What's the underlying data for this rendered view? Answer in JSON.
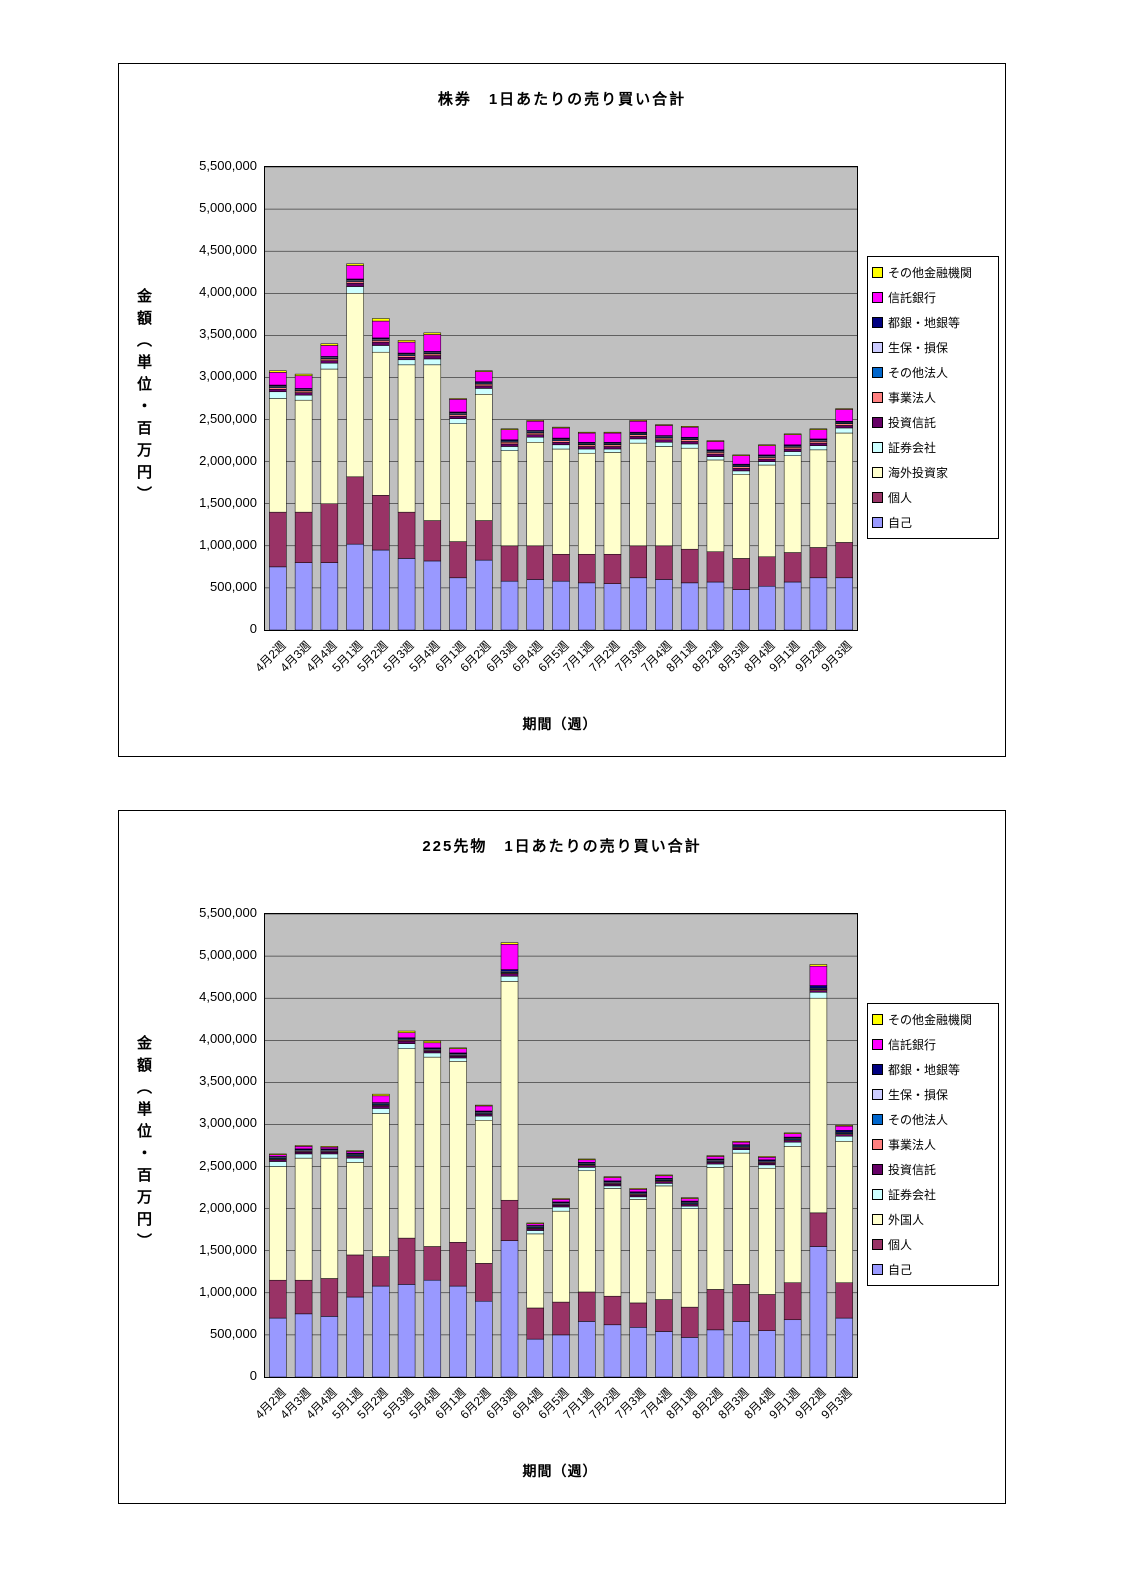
{
  "chart_data": [
    {
      "type": "bar",
      "stacked": true,
      "title": "株券　1日あたりの売り買い合計",
      "xlabel": "期間（週）",
      "ylabel": "金額（単位・百万円）",
      "ylim": [
        0,
        5500000
      ],
      "ytick_step": 500000,
      "grid": true,
      "legend_position": "right",
      "plot_bg": "#c0c0c0",
      "categories": [
        "4月2週",
        "4月3週",
        "4月4週",
        "5月1週",
        "5月2週",
        "5月3週",
        "5月4週",
        "6月1週",
        "6月2週",
        "6月3週",
        "6月4週",
        "6月5週",
        "7月1週",
        "7月2週",
        "7月3週",
        "7月4週",
        "8月1週",
        "8月2週",
        "8月3週",
        "8月4週",
        "9月1週",
        "9月2週",
        "9月3週"
      ],
      "series": [
        {
          "name": "自己",
          "color": "#9999FF",
          "values": [
            750000,
            800000,
            800000,
            1020000,
            950000,
            850000,
            820000,
            620000,
            830000,
            580000,
            600000,
            580000,
            560000,
            550000,
            620000,
            600000,
            560000,
            570000,
            480000,
            520000,
            570000,
            620000,
            620000
          ]
        },
        {
          "name": "個人",
          "color": "#993366",
          "values": [
            650000,
            600000,
            700000,
            800000,
            650000,
            550000,
            480000,
            430000,
            470000,
            420000,
            400000,
            320000,
            340000,
            350000,
            380000,
            400000,
            400000,
            360000,
            370000,
            350000,
            350000,
            360000,
            420000
          ]
        },
        {
          "name": "海外投資家",
          "color": "#FFFFCC",
          "values": [
            1350000,
            1330000,
            1600000,
            2180000,
            1700000,
            1750000,
            1850000,
            1400000,
            1500000,
            1130000,
            1230000,
            1250000,
            1200000,
            1210000,
            1220000,
            1180000,
            1200000,
            1090000,
            1000000,
            1090000,
            1150000,
            1160000,
            1300000
          ]
        },
        {
          "name": "証券会社",
          "color": "#CCFFFF",
          "values": [
            80000,
            60000,
            70000,
            80000,
            80000,
            60000,
            70000,
            60000,
            70000,
            50000,
            60000,
            50000,
            50000,
            40000,
            50000,
            50000,
            50000,
            40000,
            40000,
            40000,
            50000,
            50000,
            60000
          ]
        },
        {
          "name": "投資信託",
          "color": "#660066",
          "values": [
            30000,
            30000,
            30000,
            40000,
            40000,
            30000,
            40000,
            30000,
            30000,
            30000,
            30000,
            30000,
            30000,
            30000,
            30000,
            30000,
            30000,
            30000,
            30000,
            30000,
            30000,
            30000,
            30000
          ]
        },
        {
          "name": "事業法人",
          "color": "#FF8080",
          "values": [
            20000,
            20000,
            20000,
            20000,
            20000,
            20000,
            20000,
            20000,
            20000,
            20000,
            20000,
            20000,
            20000,
            20000,
            20000,
            20000,
            20000,
            20000,
            20000,
            20000,
            20000,
            20000,
            20000
          ]
        },
        {
          "name": "その他法人",
          "color": "#0066CC",
          "values": [
            10000,
            10000,
            10000,
            10000,
            10000,
            10000,
            10000,
            10000,
            10000,
            10000,
            10000,
            10000,
            10000,
            10000,
            10000,
            10000,
            10000,
            10000,
            10000,
            10000,
            10000,
            10000,
            10000
          ]
        },
        {
          "name": "生保・損保",
          "color": "#CCCCFF",
          "values": [
            10000,
            10000,
            10000,
            10000,
            10000,
            10000,
            10000,
            10000,
            10000,
            10000,
            10000,
            10000,
            10000,
            10000,
            10000,
            10000,
            10000,
            10000,
            10000,
            10000,
            10000,
            10000,
            10000
          ]
        },
        {
          "name": "都銀・地銀等",
          "color": "#000080",
          "values": [
            10000,
            10000,
            10000,
            10000,
            10000,
            10000,
            10000,
            10000,
            10000,
            10000,
            10000,
            10000,
            10000,
            10000,
            10000,
            10000,
            10000,
            10000,
            10000,
            10000,
            10000,
            10000,
            10000
          ]
        },
        {
          "name": "信託銀行",
          "color": "#FF00FF",
          "values": [
            150000,
            150000,
            130000,
            160000,
            200000,
            130000,
            200000,
            150000,
            120000,
            120000,
            110000,
            120000,
            110000,
            110000,
            130000,
            120000,
            120000,
            100000,
            100000,
            110000,
            120000,
            110000,
            140000
          ]
        },
        {
          "name": "その他金融機関",
          "color": "#FFFF00",
          "values": [
            20000,
            20000,
            20000,
            20000,
            30000,
            20000,
            20000,
            10000,
            10000,
            10000,
            10000,
            10000,
            10000,
            10000,
            10000,
            10000,
            10000,
            10000,
            10000,
            10000,
            10000,
            10000,
            10000
          ]
        }
      ]
    },
    {
      "type": "bar",
      "stacked": true,
      "title": "225先物　1日あたりの売り買い合計",
      "xlabel": "期間（週）",
      "ylabel": "金額（単位・百万円）",
      "ylim": [
        0,
        5500000
      ],
      "ytick_step": 500000,
      "grid": true,
      "legend_position": "right",
      "plot_bg": "#c0c0c0",
      "categories": [
        "4月2週",
        "4月3週",
        "4月4週",
        "5月1週",
        "5月2週",
        "5月3週",
        "5月4週",
        "6月1週",
        "6月2週",
        "6月3週",
        "6月4週",
        "6月5週",
        "7月1週",
        "7月2週",
        "7月3週",
        "7月4週",
        "8月1週",
        "8月2週",
        "8月3週",
        "8月4週",
        "9月1週",
        "9月2週",
        "9月3週"
      ],
      "series": [
        {
          "name": "自己",
          "color": "#9999FF",
          "values": [
            700000,
            750000,
            720000,
            950000,
            1080000,
            1100000,
            1150000,
            1080000,
            900000,
            1620000,
            450000,
            500000,
            660000,
            620000,
            590000,
            540000,
            470000,
            560000,
            660000,
            550000,
            680000,
            1550000,
            700000
          ]
        },
        {
          "name": "個人",
          "color": "#993366",
          "values": [
            450000,
            400000,
            450000,
            500000,
            350000,
            550000,
            400000,
            520000,
            450000,
            480000,
            370000,
            390000,
            350000,
            340000,
            290000,
            380000,
            360000,
            480000,
            440000,
            430000,
            440000,
            400000,
            420000
          ]
        },
        {
          "name": "外国人",
          "color": "#FFFFCC",
          "values": [
            1350000,
            1450000,
            1430000,
            1100000,
            1700000,
            2250000,
            2250000,
            2150000,
            1700000,
            2600000,
            880000,
            1080000,
            1440000,
            1280000,
            1230000,
            1350000,
            1170000,
            1450000,
            1560000,
            1500000,
            1620000,
            2550000,
            1680000
          ]
        },
        {
          "name": "証券会社",
          "color": "#CCFFFF",
          "values": [
            60000,
            50000,
            50000,
            50000,
            60000,
            60000,
            50000,
            40000,
            50000,
            60000,
            40000,
            50000,
            40000,
            30000,
            30000,
            30000,
            30000,
            40000,
            40000,
            40000,
            50000,
            70000,
            60000
          ]
        },
        {
          "name": "投資信託",
          "color": "#660066",
          "values": [
            20000,
            20000,
            20000,
            20000,
            30000,
            30000,
            20000,
            20000,
            20000,
            30000,
            20000,
            20000,
            20000,
            20000,
            20000,
            20000,
            20000,
            20000,
            20000,
            20000,
            20000,
            20000,
            20000
          ]
        },
        {
          "name": "事業法人",
          "color": "#FF8080",
          "values": [
            10000,
            10000,
            10000,
            10000,
            10000,
            10000,
            10000,
            10000,
            10000,
            10000,
            10000,
            10000,
            10000,
            10000,
            10000,
            10000,
            10000,
            10000,
            10000,
            10000,
            10000,
            10000,
            10000
          ]
        },
        {
          "name": "その他法人",
          "color": "#0066CC",
          "values": [
            10000,
            10000,
            10000,
            10000,
            10000,
            10000,
            10000,
            10000,
            10000,
            10000,
            10000,
            10000,
            10000,
            10000,
            10000,
            10000,
            10000,
            10000,
            10000,
            10000,
            10000,
            10000,
            10000
          ]
        },
        {
          "name": "生保・損保",
          "color": "#CCCCFF",
          "values": [
            10000,
            10000,
            10000,
            10000,
            10000,
            10000,
            10000,
            10000,
            10000,
            10000,
            10000,
            10000,
            10000,
            10000,
            10000,
            10000,
            10000,
            10000,
            10000,
            10000,
            10000,
            10000,
            10000
          ]
        },
        {
          "name": "都銀・地銀等",
          "color": "#000080",
          "values": [
            10000,
            10000,
            10000,
            10000,
            10000,
            10000,
            10000,
            10000,
            10000,
            20000,
            10000,
            10000,
            10000,
            10000,
            10000,
            10000,
            10000,
            10000,
            10000,
            10000,
            10000,
            30000,
            20000
          ]
        },
        {
          "name": "信託銀行",
          "color": "#FF00FF",
          "values": [
            20000,
            30000,
            20000,
            20000,
            80000,
            60000,
            60000,
            50000,
            60000,
            300000,
            20000,
            30000,
            30000,
            40000,
            30000,
            30000,
            30000,
            30000,
            30000,
            30000,
            40000,
            230000,
            50000
          ]
        },
        {
          "name": "その他金融機関",
          "color": "#FFFF00",
          "values": [
            10000,
            10000,
            10000,
            10000,
            20000,
            20000,
            20000,
            10000,
            10000,
            20000,
            10000,
            10000,
            10000,
            10000,
            10000,
            10000,
            10000,
            10000,
            10000,
            10000,
            10000,
            20000,
            10000
          ]
        }
      ]
    }
  ]
}
